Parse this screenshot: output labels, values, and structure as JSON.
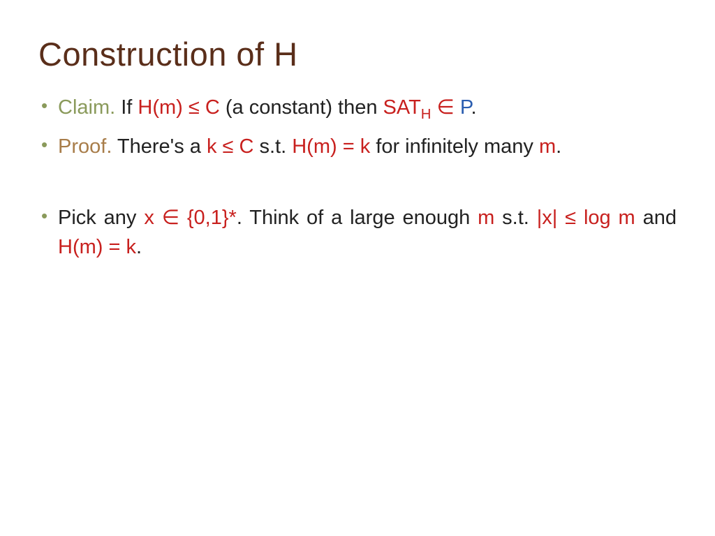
{
  "colors": {
    "title": "#5a2e1a",
    "bullet": "#8a9a5b",
    "claim_label": "#8a9a5b",
    "proof_label": "#a87d4a",
    "math_red": "#c8201e",
    "class_blue": "#2a5db0",
    "body_text": "#222222"
  },
  "fonts": {
    "title_size": 47,
    "body_size": 29
  },
  "title": "Construction of  H",
  "bullets": {
    "b1": {
      "claim": "Claim.",
      "t1": "  If ",
      "hm": "H(m)  ≤  C",
      "t2": " (a constant) then ",
      "sat": "SAT",
      "satsub": "H",
      "in": " ∈ ",
      "P": "P",
      "t3": "."
    },
    "b2": {
      "proof": "Proof.",
      "t1": "  There's a ",
      "kc": "k ≤ C",
      "t2": " s.t. ",
      "hmk": "H(m) = k",
      "t3": " for infinitely many ",
      "m": "m",
      "t4": "."
    },
    "b3": {
      "t1": "Pick any ",
      "x": "x ∈ {0,1}*",
      "t2": ".  Think of a large enough ",
      "m": "m",
      "t3": " s.t. ",
      "xlog": "|x| ≤ log m",
      "t4": " and ",
      "hmk": "H(m) = k",
      "t5": "."
    }
  }
}
